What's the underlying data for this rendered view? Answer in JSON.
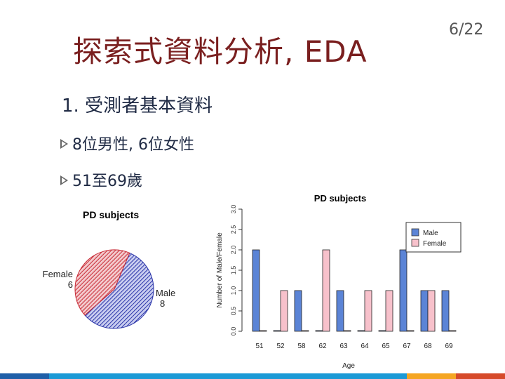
{
  "slide": {
    "title": "探索式資料分析, EDA",
    "page_number": "6/22",
    "heading": "1. 受測者基本資料",
    "bullets": [
      "8位男性, 6位女性",
      "51至69歲"
    ]
  },
  "pie": {
    "title": "PD subjects",
    "female_label": "Female",
    "female_value": "6",
    "male_label": "Male",
    "male_value": "8"
  },
  "chart_data": [
    {
      "type": "pie",
      "title": "PD subjects",
      "categories": [
        "Male",
        "Female"
      ],
      "values": [
        8,
        6
      ],
      "colors": [
        "#3b4bb5",
        "#d03a45"
      ]
    },
    {
      "type": "bar",
      "title": "PD subjects",
      "xlabel": "Age",
      "ylabel": "Number of Male/Female",
      "categories": [
        "51",
        "52",
        "58",
        "62",
        "63",
        "64",
        "65",
        "67",
        "68",
        "69"
      ],
      "series": [
        {
          "name": "Male",
          "values": [
            2,
            0,
            1,
            0,
            1,
            0,
            0,
            2,
            1,
            1
          ],
          "color": "#5b84d6"
        },
        {
          "name": "Female",
          "values": [
            0,
            1,
            0,
            2,
            0,
            1,
            1,
            0,
            1,
            0
          ],
          "color": "#f7c1cb"
        }
      ],
      "ylim": [
        0,
        3
      ],
      "yticks": [
        "0.0",
        "0.5",
        "1.0",
        "1.5",
        "2.0",
        "2.5",
        "3.0"
      ],
      "legend": "top-right"
    }
  ],
  "footer_colors": [
    "#1f5fa8",
    "#1b9ad6",
    "#f5a623",
    "#d64a2a"
  ]
}
